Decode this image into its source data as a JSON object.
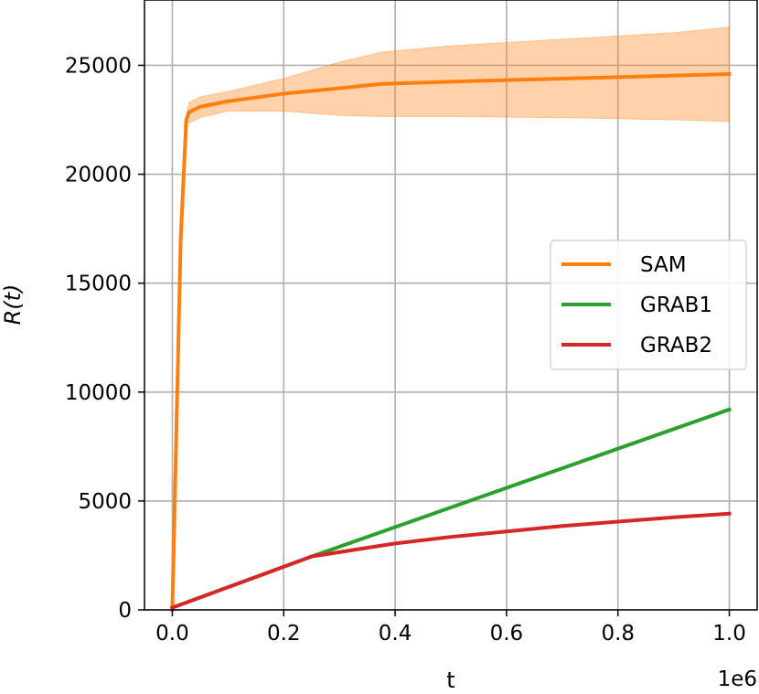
{
  "chart_data": {
    "type": "line",
    "xlabel": "t",
    "ylabel": "R(t)",
    "x_offset_label": "1e6",
    "xlim": [
      -0.05,
      1.05
    ],
    "ylim": [
      0,
      28000
    ],
    "x_ticks": [
      0.0,
      0.2,
      0.4,
      0.6,
      0.8,
      1.0
    ],
    "x_tick_labels": [
      "0.0",
      "0.2",
      "0.4",
      "0.6",
      "0.8",
      "1.0"
    ],
    "y_ticks": [
      0,
      5000,
      10000,
      15000,
      20000,
      25000
    ],
    "y_tick_labels": [
      "0",
      "5000",
      "10000",
      "15000",
      "20000",
      "25000"
    ],
    "grid": true,
    "legend_position": "center-right",
    "series": [
      {
        "name": "SAM",
        "color": "#ff7f0e",
        "x": [
          0.0,
          0.015,
          0.025,
          0.03,
          0.05,
          0.1,
          0.2,
          0.3,
          0.375,
          0.5,
          0.6,
          0.7,
          0.8,
          0.9,
          1.0
        ],
        "y": [
          0,
          17000,
          22500,
          22850,
          23100,
          23350,
          23700,
          23950,
          24150,
          24250,
          24320,
          24390,
          24460,
          24530,
          24600
        ],
        "band_lower": [
          0,
          16900,
          22300,
          22350,
          22600,
          22900,
          22900,
          22700,
          22650,
          22650,
          22620,
          22600,
          22550,
          22500,
          22420
        ],
        "band_upper": [
          0,
          17100,
          22700,
          23300,
          23550,
          23800,
          24400,
          25150,
          25600,
          25900,
          26050,
          26200,
          26350,
          26500,
          26750
        ]
      },
      {
        "name": "GRAB1",
        "color": "#2ca02c",
        "x": [
          0.0,
          0.25,
          0.5,
          0.75,
          1.0
        ],
        "y": [
          100,
          2450,
          4700,
          6950,
          9200
        ]
      },
      {
        "name": "GRAB2",
        "color": "#d62728",
        "x": [
          0.0,
          0.25,
          0.4,
          0.5,
          0.6,
          0.7,
          0.8,
          0.9,
          1.0
        ],
        "y": [
          100,
          2450,
          3050,
          3350,
          3600,
          3850,
          4050,
          4250,
          4420
        ]
      }
    ]
  }
}
